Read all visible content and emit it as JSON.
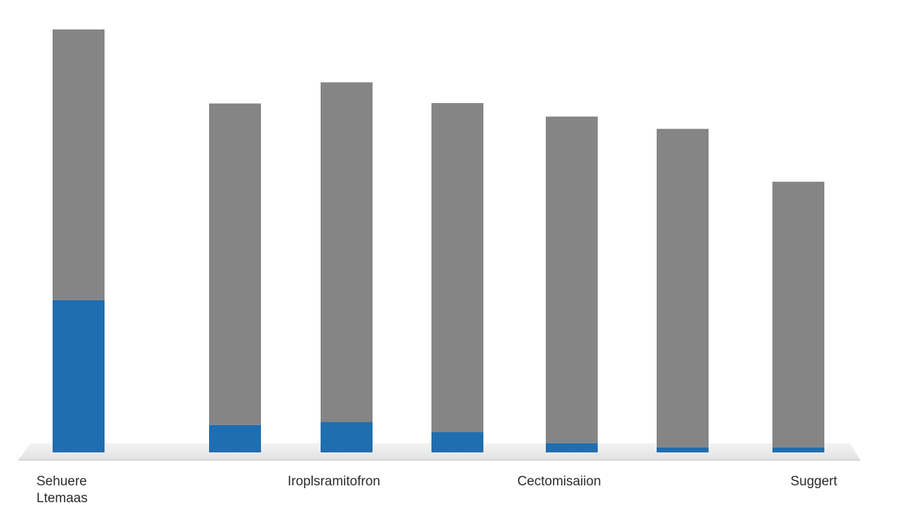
{
  "chart_data": {
    "type": "bar",
    "stacked": true,
    "title": "",
    "xlabel": "",
    "ylabel": "",
    "ylim": [
      0,
      100
    ],
    "grid": false,
    "categories": [
      "",
      "",
      "",
      "",
      "",
      "",
      ""
    ],
    "category_labels": [
      {
        "lines": [
          "Sehuere",
          "Ltemaas"
        ],
        "bar": 0
      },
      {
        "lines": [
          "Iroplsramitofron"
        ],
        "bar": 2
      },
      {
        "lines": [
          "Cectomisaiion"
        ],
        "bar": 4
      },
      {
        "lines": [
          "Suggert"
        ],
        "bar": 6
      }
    ],
    "series": [
      {
        "values": [
          36,
          6.5,
          7.2,
          4.8,
          2.2,
          1.2,
          1.2
        ],
        "color": "#1f6eb0"
      },
      {
        "values": [
          64,
          76,
          80.3,
          77.8,
          77.2,
          75.3,
          62.8
        ],
        "color": "#858585"
      }
    ]
  }
}
